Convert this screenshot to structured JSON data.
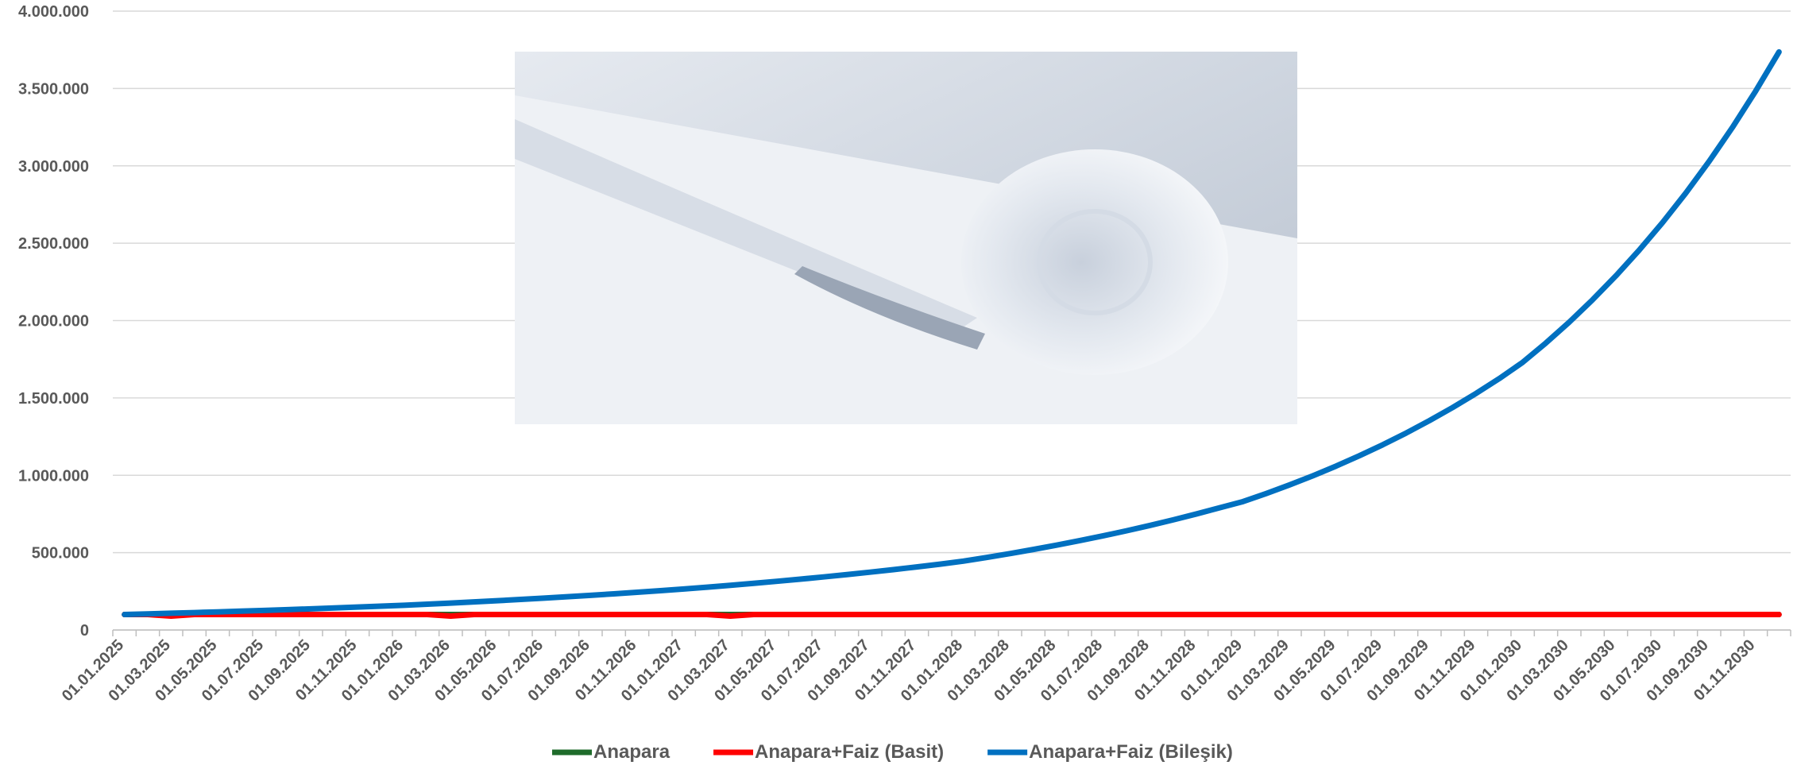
{
  "chart_data": {
    "type": "line",
    "categories": [
      "01.01.2025",
      null,
      "01.03.2025",
      null,
      "01.05.2025",
      null,
      "01.07.2025",
      null,
      "01.09.2025",
      null,
      "01.11.2025",
      null,
      "01.01.2026",
      null,
      "01.03.2026",
      null,
      "01.05.2026",
      null,
      "01.07.2026",
      null,
      "01.09.2026",
      null,
      "01.11.2026",
      null,
      "01.01.2027",
      null,
      "01.03.2027",
      null,
      "01.05.2027",
      null,
      "01.07.2027",
      null,
      "01.09.2027",
      null,
      "01.11.2027",
      null,
      "01.01.2028",
      null,
      "01.03.2028",
      null,
      "01.05.2028",
      null,
      "01.07.2028",
      null,
      "01.09.2028",
      null,
      "01.11.2028",
      null,
      "01.01.2029",
      null,
      "01.03.2029",
      null,
      "01.05.2029",
      null,
      "01.07.2029",
      null,
      "01.09.2029",
      null,
      "01.11.2029",
      null,
      "01.01.2030",
      null,
      "01.03.2030",
      null,
      "01.05.2030",
      null,
      "01.07.2030",
      null,
      "01.09.2030",
      null,
      "01.11.2030",
      null
    ],
    "series": [
      {
        "name": "Anapara",
        "color": "#1e6b2a",
        "values": [
          100000,
          100000,
          100000,
          100000,
          100000,
          100000,
          100000,
          100000,
          100000,
          100000,
          100000,
          100000,
          100000,
          100000,
          100000,
          100000,
          100000,
          100000,
          100000,
          100000,
          100000,
          100000,
          100000,
          100000,
          100000,
          100000,
          100000,
          100000,
          100000,
          100000,
          100000,
          100000,
          100000,
          100000,
          100000,
          100000,
          100000,
          100000,
          100000,
          100000,
          100000,
          100000,
          100000,
          100000,
          100000,
          100000,
          100000,
          100000,
          100000,
          100000,
          100000,
          100000,
          100000,
          100000,
          100000,
          100000,
          100000,
          100000,
          100000,
          100000,
          100000,
          100000,
          100000,
          100000,
          100000,
          100000,
          100000,
          100000,
          100000,
          100000,
          100000,
          100000
        ]
      },
      {
        "name": "Anapara+Faiz (Basit)",
        "color": "#ff0000",
        "values": [
          100000,
          100000,
          90000,
          100000,
          100000,
          100000,
          100000,
          100000,
          100000,
          100000,
          100000,
          100000,
          100000,
          100000,
          90000,
          100000,
          100000,
          100000,
          100000,
          100000,
          100000,
          100000,
          100000,
          100000,
          100000,
          100000,
          90000,
          100000,
          100000,
          100000,
          100000,
          100000,
          100000,
          100000,
          100000,
          100000,
          100000,
          100000,
          100000,
          100000,
          100000,
          100000,
          100000,
          100000,
          100000,
          100000,
          100000,
          100000,
          100000,
          100000,
          100000,
          100000,
          100000,
          100000,
          100000,
          100000,
          100000,
          100000,
          100000,
          100000,
          100000,
          100000,
          100000,
          100000,
          100000,
          100000,
          100000,
          100000,
          100000,
          100000,
          100000,
          100000
        ]
      },
      {
        "name": "Anapara+Faiz (Bileşik)",
        "color": "#0070c0",
        "values": [
          100000,
          104000,
          108200,
          112500,
          117000,
          121700,
          126500,
          131600,
          136900,
          142300,
          148000,
          153900,
          160000,
          166900,
          174000,
          181500,
          189300,
          197500,
          206000,
          214800,
          224100,
          233700,
          243700,
          254200,
          265000,
          276700,
          288800,
          301500,
          314800,
          328600,
          343100,
          358200,
          373900,
          390400,
          407600,
          425500,
          445000,
          468900,
          494000,
          520500,
          548400,
          577700,
          608700,
          641300,
          675700,
          711900,
          750000,
          790200,
          830000,
          882300,
          937900,
          997000,
          1059800,
          1126600,
          1197500,
          1273000,
          1353200,
          1438400,
          1529100,
          1625400,
          1730000,
          1855400,
          1989900,
          2134200,
          2288900,
          2454900,
          2632900,
          2823700,
          3028500,
          3248000,
          3483500,
          3736000
        ]
      }
    ],
    "ylim": [
      0,
      4000000
    ],
    "yticks": [
      0,
      {
        "value": 500000,
        "label": "500.000"
      },
      {
        "value": 1000000,
        "label": "1.000.000"
      },
      {
        "value": 1500000,
        "label": "1.500.000"
      },
      {
        "value": 2000000,
        "label": "2.000.000"
      },
      {
        "value": 2500000,
        "label": "2.500.000"
      },
      {
        "value": 3000000,
        "label": "3.000.000"
      },
      {
        "value": 3500000,
        "label": "3.500.000"
      },
      {
        "value": 4000000,
        "label": "4.000.000"
      }
    ],
    "grid": true,
    "legend": "bottom"
  }
}
